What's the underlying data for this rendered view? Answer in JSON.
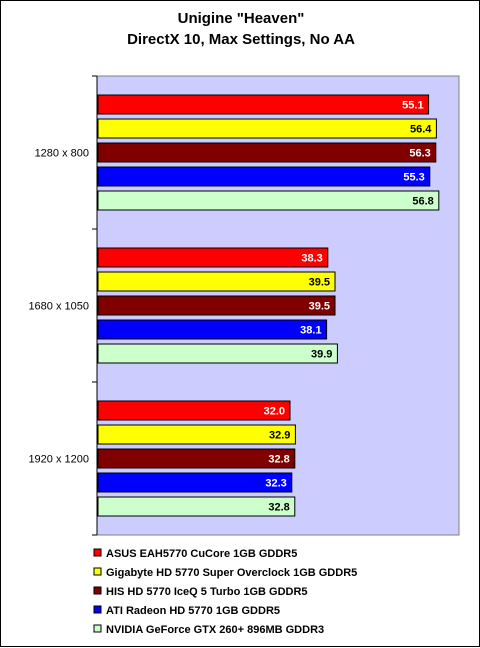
{
  "chart_data": {
    "type": "bar",
    "orientation": "horizontal",
    "title": "Unigine \"Heaven\"",
    "subtitle": "DirectX 10, Max Settings, No AA",
    "categories": [
      "1280 x 800",
      "1680 x 1050",
      "1920 x 1200"
    ],
    "xlim": [
      0,
      60
    ],
    "grid": false,
    "legend_position": "bottom",
    "plot_background": "#ccccff",
    "series": [
      {
        "name": "ASUS EAH5770 CuCore 1GB GDDR5",
        "color": "#ff0000",
        "label_color": "#ffffff",
        "values": [
          55.1,
          38.3,
          32.0
        ],
        "labels": [
          "55.1",
          "38.3",
          "32.0"
        ]
      },
      {
        "name": "Gigabyte HD 5770 Super Overclock 1GB GDDR5",
        "color": "#ffff00",
        "label_color": "#000000",
        "values": [
          56.4,
          39.5,
          32.9
        ],
        "labels": [
          "56.4",
          "39.5",
          "32.9"
        ]
      },
      {
        "name": "HIS HD 5770 IceQ 5 Turbo 1GB GDDR5",
        "color": "#800000",
        "label_color": "#ffffff",
        "values": [
          56.3,
          39.5,
          32.8
        ],
        "labels": [
          "56.3",
          "39.5",
          "32.8"
        ]
      },
      {
        "name": "ATI Radeon HD 5770 1GB GDDR5",
        "color": "#0000ff",
        "label_color": "#ffffff",
        "values": [
          55.3,
          38.1,
          32.3
        ],
        "labels": [
          "55.3",
          "38.1",
          "32.3"
        ]
      },
      {
        "name": "NVIDIA GeForce GTX 260+ 896MB GDDR3",
        "color": "#ccffcc",
        "label_color": "#000000",
        "values": [
          56.8,
          39.9,
          32.8
        ],
        "labels": [
          "56.8",
          "39.9",
          "32.8"
        ]
      }
    ]
  }
}
